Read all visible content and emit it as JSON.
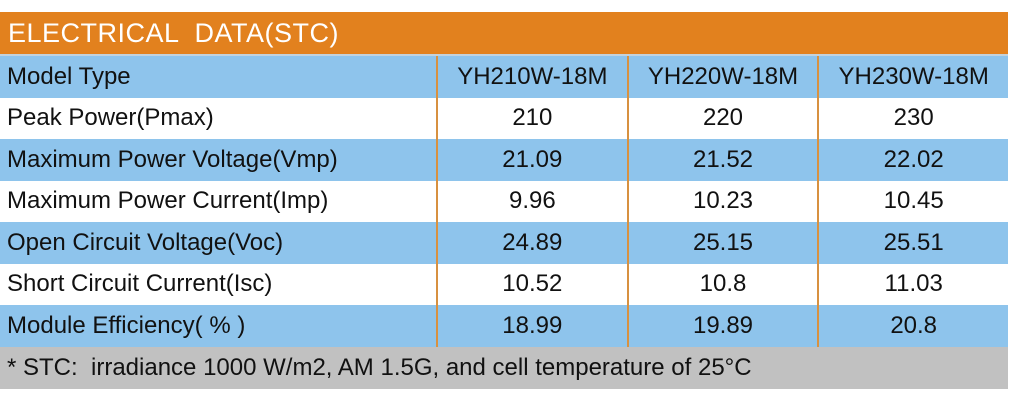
{
  "title": "ELECTRICAL  DATA(STC)",
  "colors": {
    "header_bg": "#E2811E",
    "row_blue": "#8EC4EC",
    "row_white": "#FFFFFF",
    "footer_bg": "#C1C1C1",
    "divider": "#D89140",
    "title_text": "#FFFFFF",
    "body_text": "#111111"
  },
  "table": {
    "model_row": {
      "label": "Model Type",
      "models": [
        "YH210W-18M",
        "YH220W-18M",
        "YH230W-18M"
      ]
    },
    "rows": [
      {
        "label": "Peak Power(Pmax)",
        "values": [
          "210",
          "220",
          "230"
        ]
      },
      {
        "label": "Maximum Power Voltage(Vmp)",
        "values": [
          "21.09",
          "21.52",
          "22.02"
        ]
      },
      {
        "label": "Maximum Power Current(Imp)",
        "values": [
          "9.96",
          "10.23",
          "10.45"
        ]
      },
      {
        "label": "Open Circuit Voltage(Voc)",
        "values": [
          "24.89",
          "25.15",
          "25.51"
        ]
      },
      {
        "label": "Short Circuit Current(Isc)",
        "values": [
          "10.52",
          "10.8",
          "11.03"
        ]
      },
      {
        "label": "Module Efficiency( % )",
        "values": [
          "18.99",
          "19.89",
          "20.8"
        ]
      }
    ],
    "footnote": "* STC:  irradiance 1000 W/m2, AM 1.5G, and cell temperature of 25°C"
  }
}
